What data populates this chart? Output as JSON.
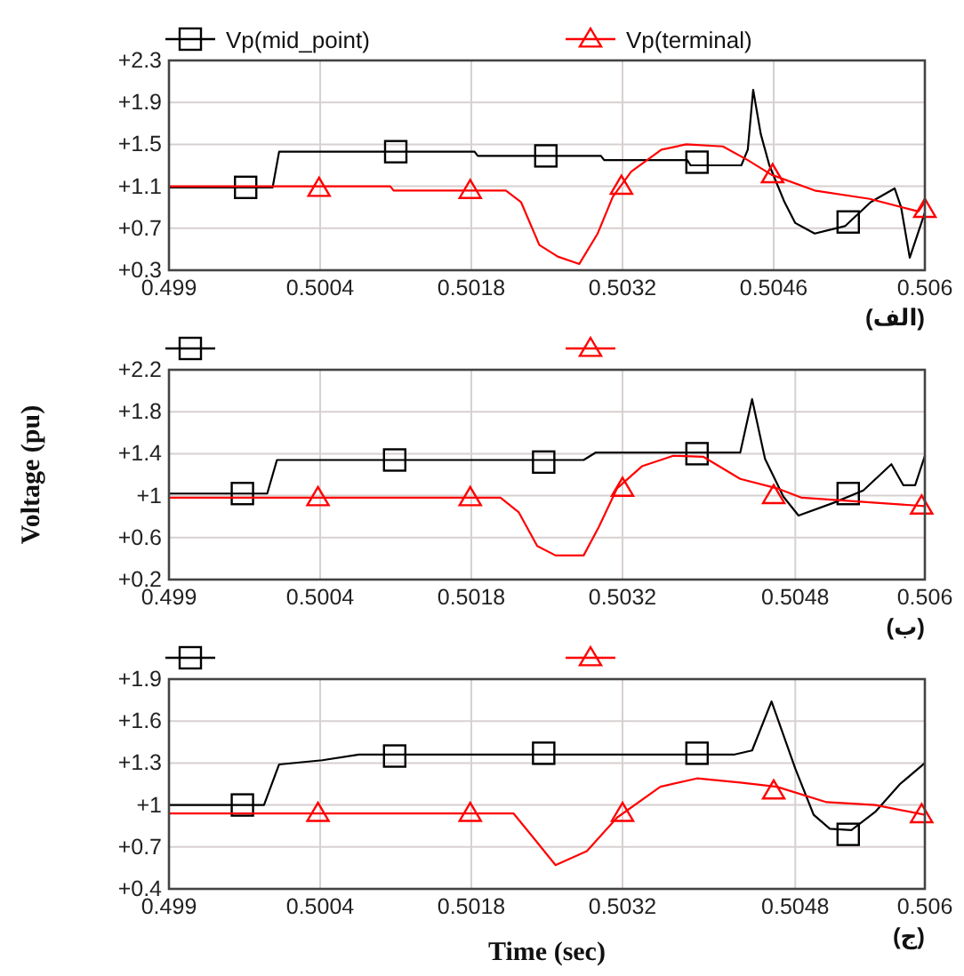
{
  "chart_data": [
    {
      "type": "line",
      "xlim": [
        0.499,
        0.506
      ],
      "xticks": [
        0.499,
        0.5004,
        0.5018,
        0.5032,
        0.5046,
        0.506
      ],
      "ylim": [
        0.3,
        2.3
      ],
      "yticks": [
        {
          "value": 0.3,
          "label": "+0.3"
        },
        {
          "value": 0.7,
          "label": "+0.7"
        },
        {
          "value": 1.1,
          "label": "+1.1"
        },
        {
          "value": 1.5,
          "label": "+1.5"
        },
        {
          "value": 1.9,
          "label": "+1.9"
        },
        {
          "value": 2.3,
          "label": "+2.3"
        }
      ],
      "grid": true,
      "legend": "top",
      "annotations": [
        "(الف)"
      ],
      "series": [
        {
          "name": "Vp(mid_point)",
          "color": "#000000",
          "marker": "none",
          "x": [
            0.499,
            0.49996,
            0.50002,
            0.50183,
            0.50186,
            0.503,
            0.50303,
            0.5038,
            0.50383,
            0.5043,
            0.50436,
            0.50441,
            0.50448,
            0.50456,
            0.5047,
            0.5048,
            0.50498,
            0.5051,
            0.50526,
            0.5055,
            0.50572,
            0.50578,
            0.50586,
            0.506
          ],
          "values": [
            1.09,
            1.09,
            1.43,
            1.43,
            1.39,
            1.39,
            1.35,
            1.35,
            1.3,
            1.3,
            1.45,
            2.02,
            1.6,
            1.3,
            0.95,
            0.75,
            0.65,
            0.68,
            0.72,
            0.95,
            1.08,
            0.9,
            0.42,
            0.85
          ]
        },
        {
          "type": "scatter",
          "color": "#000000",
          "marker": "square",
          "x": [
            0.49971,
            0.5011,
            0.50249,
            0.50389,
            0.50529
          ],
          "values": [
            1.09,
            1.43,
            1.39,
            1.33,
            0.76
          ]
        },
        {
          "name": "Vp(terminal)",
          "color": "#ff0000",
          "marker": "none",
          "x": [
            0.499,
            0.50105,
            0.50108,
            0.50212,
            0.50226,
            0.50243,
            0.5026,
            0.5028,
            0.50297,
            0.50311,
            0.50328,
            0.50356,
            0.50379,
            0.50413,
            0.50436,
            0.50458,
            0.50498,
            0.50549,
            0.50594,
            0.506
          ],
          "values": [
            1.1,
            1.1,
            1.06,
            1.06,
            0.95,
            0.54,
            0.43,
            0.36,
            0.65,
            1.0,
            1.24,
            1.45,
            1.5,
            1.48,
            1.35,
            1.21,
            1.06,
            0.98,
            0.86,
            0.95
          ]
        },
        {
          "type": "scatter",
          "color": "#ff0000",
          "marker": "triangle",
          "x": [
            0.50039,
            0.50179,
            0.50319,
            0.50459,
            0.506
          ],
          "values": [
            1.08,
            1.06,
            1.1,
            1.21,
            0.88
          ]
        }
      ]
    },
    {
      "type": "line",
      "xlim": [
        0.499,
        0.506
      ],
      "xticks": [
        0.499,
        0.5004,
        0.5018,
        0.5032,
        0.5048,
        0.506
      ],
      "ylim": [
        0.2,
        2.2
      ],
      "yticks": [
        {
          "value": 0.2,
          "label": "+0.2"
        },
        {
          "value": 0.6,
          "label": "+0.6"
        },
        {
          "value": 1.0,
          "label": "+1"
        },
        {
          "value": 1.4,
          "label": "+1.4"
        },
        {
          "value": 1.8,
          "label": "+1.8"
        },
        {
          "value": 2.2,
          "label": "+2.2"
        }
      ],
      "grid": true,
      "legend": "top",
      "ylabel": "Voltage (pu)",
      "annotations": [
        "(ب)"
      ],
      "series": [
        {
          "color": "#000000",
          "marker": "none",
          "x": [
            0.499,
            0.49991,
            0.5,
            0.50284,
            0.50295,
            0.50429,
            0.5044,
            0.50452,
            0.50469,
            0.50483,
            0.50515,
            0.50543,
            0.50569,
            0.5058,
            0.50591,
            0.506
          ],
          "values": [
            1.02,
            1.02,
            1.34,
            1.34,
            1.41,
            1.41,
            1.92,
            1.35,
            0.99,
            0.81,
            0.93,
            1.05,
            1.3,
            1.1,
            1.1,
            1.38
          ]
        },
        {
          "type": "scatter",
          "color": "#000000",
          "marker": "square",
          "x": [
            0.49968,
            0.50109,
            0.50247,
            0.50389,
            0.50529
          ],
          "values": [
            1.02,
            1.34,
            1.32,
            1.4,
            1.02
          ]
        },
        {
          "color": "#ff0000",
          "marker": "none",
          "x": [
            0.499,
            0.50207,
            0.50224,
            0.50241,
            0.50258,
            0.50284,
            0.50298,
            0.50315,
            0.50338,
            0.50367,
            0.50395,
            0.50429,
            0.50463,
            0.50486,
            0.50543,
            0.506
          ],
          "values": [
            0.98,
            0.98,
            0.84,
            0.52,
            0.43,
            0.43,
            0.7,
            1.07,
            1.28,
            1.38,
            1.37,
            1.16,
            1.07,
            0.98,
            0.94,
            0.9
          ]
        },
        {
          "type": "scatter",
          "color": "#ff0000",
          "marker": "triangle",
          "x": [
            0.50038,
            0.50179,
            0.5032,
            0.5046,
            0.50597
          ],
          "values": [
            0.98,
            0.98,
            1.07,
            1.0,
            0.9
          ]
        }
      ]
    },
    {
      "type": "line",
      "xlim": [
        0.499,
        0.506
      ],
      "xticks": [
        0.499,
        0.5004,
        0.5018,
        0.5032,
        0.5048,
        0.506
      ],
      "ylim": [
        0.4,
        1.9
      ],
      "yticks": [
        {
          "value": 0.4,
          "label": "+0.4"
        },
        {
          "value": 0.7,
          "label": "+0.7"
        },
        {
          "value": 1.0,
          "label": "+1"
        },
        {
          "value": 1.3,
          "label": "+1.3"
        },
        {
          "value": 1.6,
          "label": "+1.6"
        },
        {
          "value": 1.9,
          "label": "+1.9"
        }
      ],
      "grid": true,
      "legend": "top",
      "xlabel": "Time (sec)",
      "annotations": [
        "(ج)"
      ],
      "series": [
        {
          "color": "#000000",
          "marker": "none",
          "x": [
            0.499,
            0.49988,
            0.50002,
            0.50042,
            0.50076,
            0.50423,
            0.5044,
            0.50458,
            0.5048,
            0.50497,
            0.50512,
            0.50532,
            0.50554,
            0.50577,
            0.506
          ],
          "values": [
            1.0,
            1.0,
            1.29,
            1.32,
            1.36,
            1.36,
            1.39,
            1.74,
            1.26,
            0.93,
            0.83,
            0.82,
            0.95,
            1.15,
            1.3
          ]
        },
        {
          "type": "scatter",
          "color": "#000000",
          "marker": "square",
          "x": [
            0.49968,
            0.50109,
            0.50247,
            0.50389,
            0.50529
          ],
          "values": [
            1.0,
            1.35,
            1.37,
            1.37,
            0.79
          ]
        },
        {
          "color": "#ff0000",
          "marker": "none",
          "x": [
            0.499,
            0.50219,
            0.50236,
            0.50258,
            0.50287,
            0.50315,
            0.50355,
            0.50389,
            0.50429,
            0.50463,
            0.50509,
            0.50554,
            0.506
          ],
          "values": [
            0.94,
            0.94,
            0.78,
            0.57,
            0.67,
            0.91,
            1.13,
            1.19,
            1.16,
            1.13,
            1.02,
            1.0,
            0.93
          ]
        },
        {
          "type": "scatter",
          "color": "#ff0000",
          "marker": "triangle",
          "x": [
            0.50038,
            0.50179,
            0.5032,
            0.5046,
            0.50597
          ],
          "values": [
            0.94,
            0.94,
            0.94,
            1.1,
            0.93
          ]
        }
      ]
    }
  ]
}
